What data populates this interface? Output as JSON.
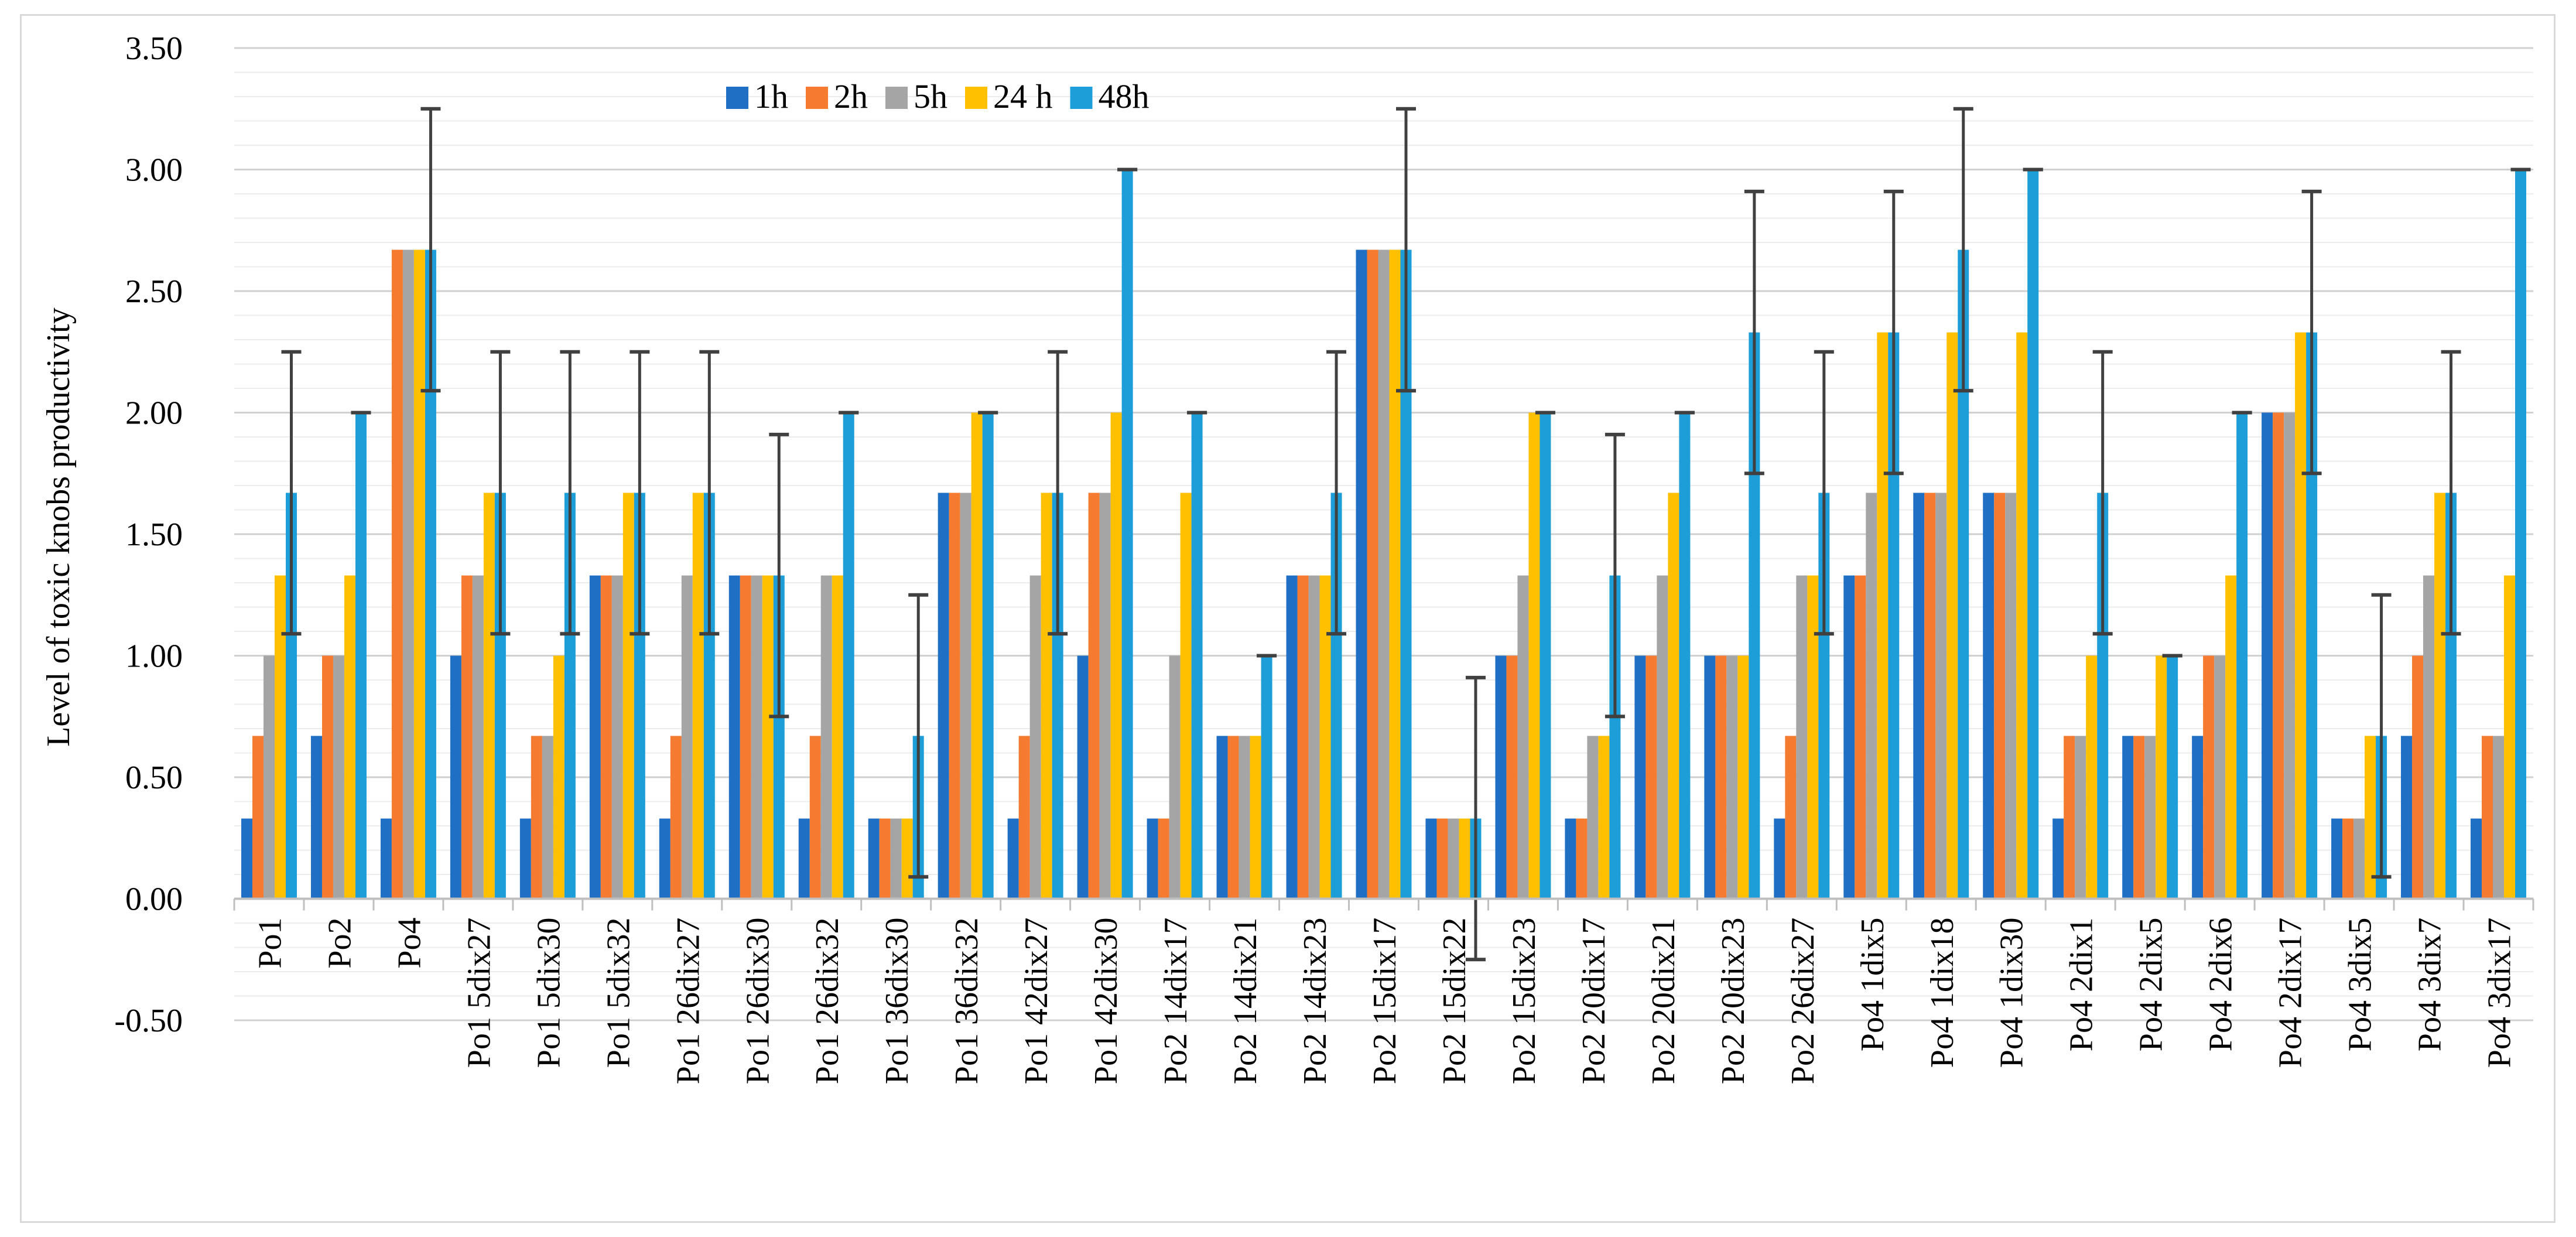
{
  "chart_data": {
    "type": "bar",
    "title": "",
    "xlabel": "",
    "ylabel": "Level of toxic knobs productivity",
    "ylim": [
      -0.5,
      3.5
    ],
    "ytick_step": 0.5,
    "yticks": [
      "3.50",
      "3.00",
      "2.50",
      "2.00",
      "1.50",
      "1.00",
      "0.50",
      "0.00",
      "-0.50"
    ],
    "grid": true,
    "legend_position": "top-center",
    "categories": [
      "Po1",
      "Po2",
      "Po4",
      "Po1 5dix27",
      "Po1 5dix30",
      "Po1 5dix32",
      "Po1 26dix27",
      "Po1 26dix30",
      "Po1 26dix32",
      "Po1 36dix30",
      "Po1 36dix32",
      "Po1 42dix27",
      "Po1 42dix30",
      "Po2 14dix17",
      "Po2 14dix21",
      "Po2 14dix23",
      "Po2 15dix17",
      "Po2 15dix22",
      "Po2 15dix23",
      "Po2 20dix17",
      "Po2 20dix21",
      "Po2 20dix23",
      "Po2 26dix27",
      "Po4 1dix5",
      "Po4 1dix18",
      "Po4 1dix30",
      "Po4 2dix1",
      "Po4 2dix5",
      "Po4 2dix6",
      "Po4 2dix17",
      "Po4 3dix5",
      "Po4 3dix7",
      "Po4 3dix17"
    ],
    "series": [
      {
        "name": "1h",
        "color": "#1f6fc5",
        "values": [
          0.33,
          0.67,
          0.33,
          1.0,
          0.33,
          1.33,
          0.33,
          1.33,
          0.33,
          0.33,
          1.67,
          0.33,
          1.0,
          0.33,
          0.67,
          1.33,
          2.67,
          0.33,
          1.0,
          0.33,
          1.0,
          1.0,
          0.33,
          1.33,
          1.67,
          1.67,
          0.33,
          0.67,
          0.67,
          2.0,
          0.33,
          0.67,
          0.33
        ]
      },
      {
        "name": "2h",
        "color": "#f47b30",
        "values": [
          0.67,
          1.0,
          2.67,
          1.33,
          0.67,
          1.33,
          0.67,
          1.33,
          0.67,
          0.33,
          1.67,
          0.67,
          1.67,
          0.33,
          0.67,
          1.33,
          2.67,
          0.33,
          1.0,
          0.33,
          1.0,
          1.0,
          0.67,
          1.33,
          1.67,
          1.67,
          0.67,
          0.67,
          1.0,
          2.0,
          0.33,
          1.0,
          0.67
        ]
      },
      {
        "name": "5h",
        "color": "#a5a5a5",
        "values": [
          1.0,
          1.0,
          2.67,
          1.33,
          0.67,
          1.33,
          1.33,
          1.33,
          1.33,
          0.33,
          1.67,
          1.33,
          1.67,
          1.0,
          0.67,
          1.33,
          2.67,
          0.33,
          1.33,
          0.67,
          1.33,
          1.0,
          1.33,
          1.67,
          1.67,
          1.67,
          0.67,
          0.67,
          1.0,
          2.0,
          0.33,
          1.33,
          0.67
        ]
      },
      {
        "name": "24 h",
        "color": "#ffc000",
        "values": [
          1.33,
          1.33,
          2.67,
          1.67,
          1.0,
          1.67,
          1.67,
          1.33,
          1.33,
          0.33,
          2.0,
          1.67,
          2.0,
          1.67,
          0.67,
          1.33,
          2.67,
          0.33,
          2.0,
          0.67,
          1.67,
          1.0,
          1.33,
          2.33,
          2.33,
          2.33,
          1.0,
          1.0,
          1.33,
          2.33,
          0.67,
          1.67,
          1.33
        ]
      },
      {
        "name": "48h",
        "color": "#1e9ed8",
        "values": [
          1.67,
          2.0,
          2.67,
          1.67,
          1.67,
          1.67,
          1.67,
          1.33,
          2.0,
          0.67,
          2.0,
          1.67,
          3.0,
          2.0,
          1.0,
          1.67,
          2.67,
          0.33,
          2.0,
          1.33,
          2.0,
          2.33,
          1.67,
          2.33,
          2.67,
          3.0,
          1.67,
          1.0,
          2.0,
          2.33,
          0.67,
          1.67,
          3.0
        ]
      }
    ],
    "error_bars": {
      "series": "48h",
      "values": [
        0.58,
        0.0,
        0.58,
        0.58,
        0.58,
        0.58,
        0.58,
        0.58,
        0.0,
        0.58,
        0.0,
        0.58,
        0.0,
        0.0,
        0.0,
        0.58,
        0.58,
        0.58,
        0.0,
        0.58,
        0.0,
        0.58,
        0.58,
        0.58,
        0.58,
        0.0,
        0.58,
        0.0,
        0.0,
        0.58,
        0.58,
        0.58,
        0.0
      ]
    }
  }
}
